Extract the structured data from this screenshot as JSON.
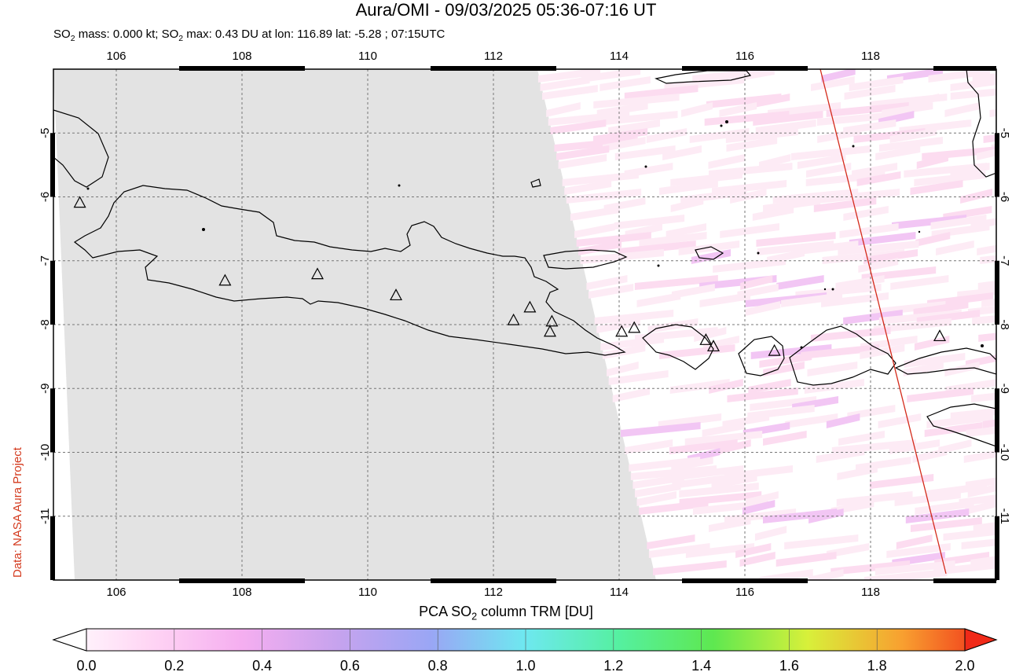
{
  "header": {
    "title": "Aura/OMI - 09/03/2025 05:36-07:16 UT",
    "subtitle_pre": "SO",
    "subtitle_sub": "2",
    "subtitle_mid": " mass: 0.000 kt; SO",
    "subtitle_sub2": "2",
    "subtitle_post": " max: 0.43 DU at lon: 116.89 lat: -5.28 ; 07:15UTC"
  },
  "credit": "Data: NASA Aura Project",
  "map": {
    "lon_range": [
      105,
      120
    ],
    "lat_range": [
      -12,
      -4
    ],
    "lon_ticks": [
      "106",
      "108",
      "110",
      "112",
      "114",
      "116",
      "118"
    ],
    "lon_tick_values": [
      106,
      108,
      110,
      112,
      114,
      116,
      118
    ],
    "lat_ticks": [
      "-5",
      "-6",
      "-7",
      "-8",
      "-9",
      "-10",
      "-11"
    ],
    "lat_tick_values": [
      -5,
      -6,
      -7,
      -8,
      -9,
      -10,
      -11
    ],
    "no_data_color": "#e3e3e3",
    "coast_color": "#000000",
    "swath_line_color": "#d42a1a",
    "swath_line": [
      [
        117.2,
        -4.0
      ],
      [
        119.2,
        -11.9
      ]
    ],
    "volcanoes": [
      [
        105.42,
        -6.1
      ],
      [
        107.73,
        -7.32
      ],
      [
        109.2,
        -7.22
      ],
      [
        110.45,
        -7.55
      ],
      [
        112.32,
        -7.94
      ],
      [
        112.58,
        -7.74
      ],
      [
        112.93,
        -7.96
      ],
      [
        112.9,
        -8.12
      ],
      [
        114.04,
        -8.12
      ],
      [
        114.24,
        -8.06
      ],
      [
        115.38,
        -8.25
      ],
      [
        115.5,
        -8.35
      ],
      [
        116.47,
        -8.42
      ],
      [
        119.1,
        -8.19
      ]
    ]
  },
  "colorbar": {
    "title_pre": "PCA SO",
    "title_sub": "2",
    "title_post": " column TRM [DU]",
    "ticks": [
      "0.0",
      "0.2",
      "0.4",
      "0.6",
      "0.8",
      "1.0",
      "1.2",
      "1.4",
      "1.6",
      "1.8",
      "2.0"
    ],
    "range": [
      0.0,
      2.0
    ],
    "colors": [
      "#ffffff",
      "#ffd6f4",
      "#f5aef0",
      "#c7a3ee",
      "#9aa6f5",
      "#6ee8f0",
      "#55f0a0",
      "#5ee850",
      "#d8f03a",
      "#f8a030",
      "#f02a18"
    ]
  }
}
